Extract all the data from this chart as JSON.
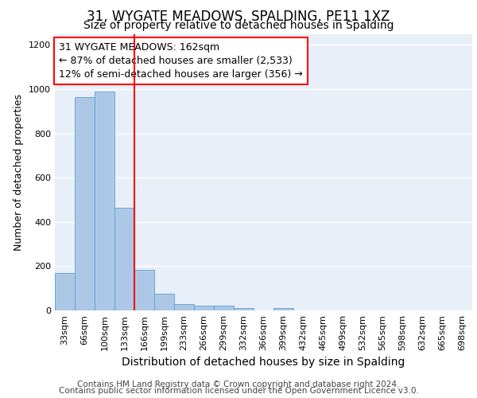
{
  "title": "31, WYGATE MEADOWS, SPALDING, PE11 1XZ",
  "subtitle": "Size of property relative to detached houses in Spalding",
  "xlabel": "Distribution of detached houses by size in Spalding",
  "ylabel": "Number of detached properties",
  "categories": [
    "33sqm",
    "66sqm",
    "100sqm",
    "133sqm",
    "166sqm",
    "199sqm",
    "233sqm",
    "266sqm",
    "299sqm",
    "332sqm",
    "366sqm",
    "399sqm",
    "432sqm",
    "465sqm",
    "499sqm",
    "532sqm",
    "565sqm",
    "598sqm",
    "632sqm",
    "665sqm",
    "698sqm"
  ],
  "values": [
    170,
    965,
    990,
    465,
    185,
    75,
    30,
    22,
    20,
    12,
    0,
    12,
    0,
    0,
    0,
    0,
    0,
    0,
    0,
    0,
    0
  ],
  "bar_color": "#adc8e6",
  "bar_edge_color": "#5a9fd4",
  "red_line_bin_index": 4,
  "annotation_line1": "31 WYGATE MEADOWS: 162sqm",
  "annotation_line2": "← 87% of detached houses are smaller (2,533)",
  "annotation_line3": "12% of semi-detached houses are larger (356) →",
  "annotation_box_color": "white",
  "annotation_box_edge_color": "red",
  "ylim": [
    0,
    1250
  ],
  "yticks": [
    0,
    200,
    400,
    600,
    800,
    1000,
    1200
  ],
  "background_color": "#e8eff8",
  "grid_color": "white",
  "footnote_line1": "Contains HM Land Registry data © Crown copyright and database right 2024.",
  "footnote_line2": "Contains public sector information licensed under the Open Government Licence v3.0.",
  "title_fontsize": 12,
  "subtitle_fontsize": 10,
  "xlabel_fontsize": 10,
  "ylabel_fontsize": 9,
  "tick_fontsize": 8,
  "annotation_fontsize": 9,
  "footnote_fontsize": 7.5
}
